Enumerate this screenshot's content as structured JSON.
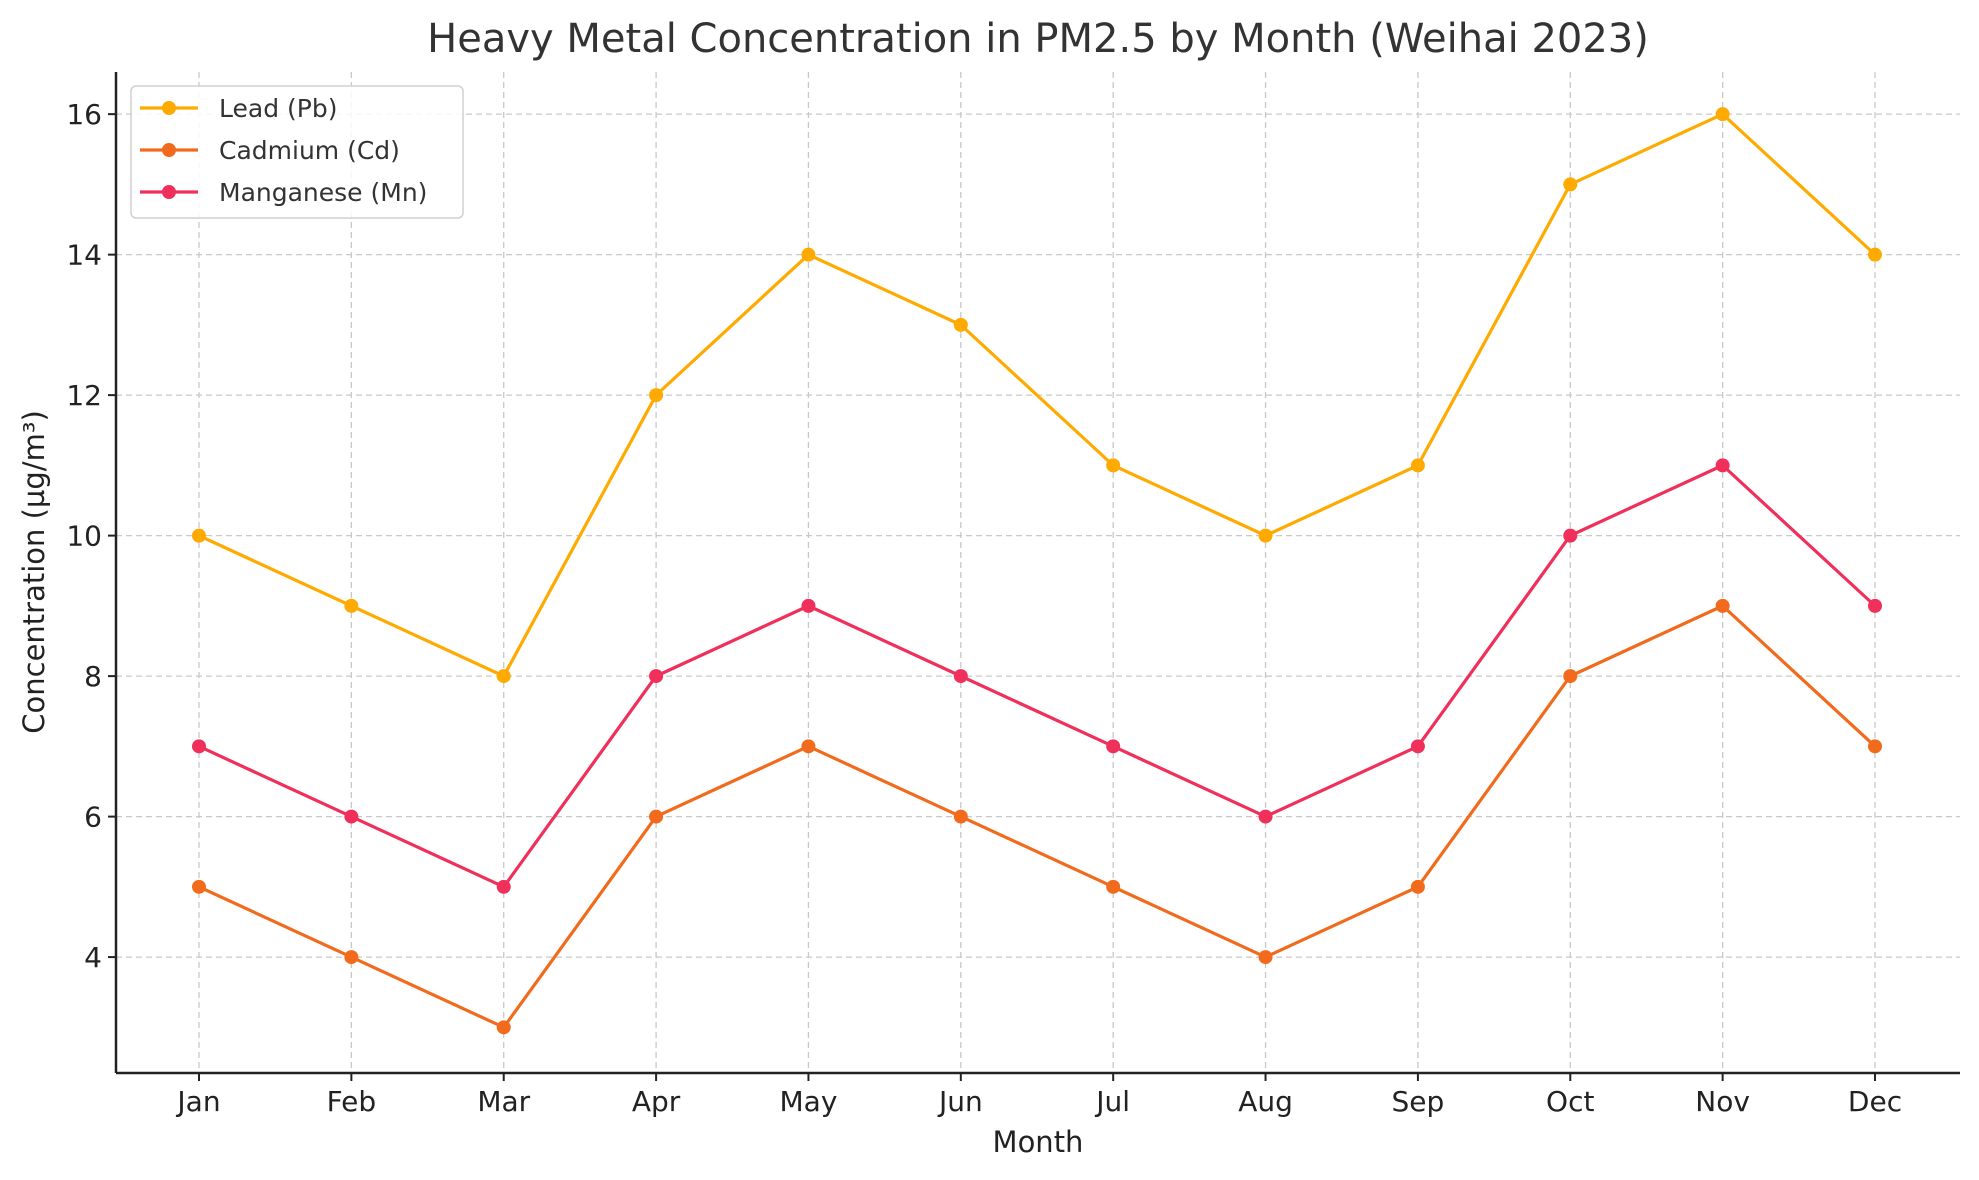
{
  "chart_data": {
    "type": "line",
    "title": "Heavy Metal Concentration in PM2.5 by Month (Weihai 2023)",
    "xlabel": "Month",
    "ylabel": "Concentration (µg/m³)",
    "categories": [
      "Jan",
      "Feb",
      "Mar",
      "Apr",
      "May",
      "Jun",
      "Jul",
      "Aug",
      "Sep",
      "Oct",
      "Nov",
      "Dec"
    ],
    "ylim": [
      2.35,
      16.6
    ],
    "yticks": [
      4,
      6,
      8,
      10,
      12,
      14,
      16
    ],
    "grid": true,
    "legend_position": "top-left",
    "series": [
      {
        "name": "Lead (Pb)",
        "color": "#FFAA00",
        "values": [
          10,
          9,
          8,
          12,
          14,
          13,
          11,
          10,
          11,
          15,
          16,
          14
        ]
      },
      {
        "name": "Cadmium (Cd)",
        "color": "#F26B1D",
        "values": [
          5,
          4,
          3,
          6,
          7,
          6,
          5,
          4,
          5,
          8,
          9,
          7
        ]
      },
      {
        "name": "Manganese (Mn)",
        "color": "#F0305A",
        "values": [
          7,
          6,
          5,
          8,
          9,
          8,
          7,
          6,
          7,
          10,
          11,
          9
        ]
      }
    ]
  }
}
